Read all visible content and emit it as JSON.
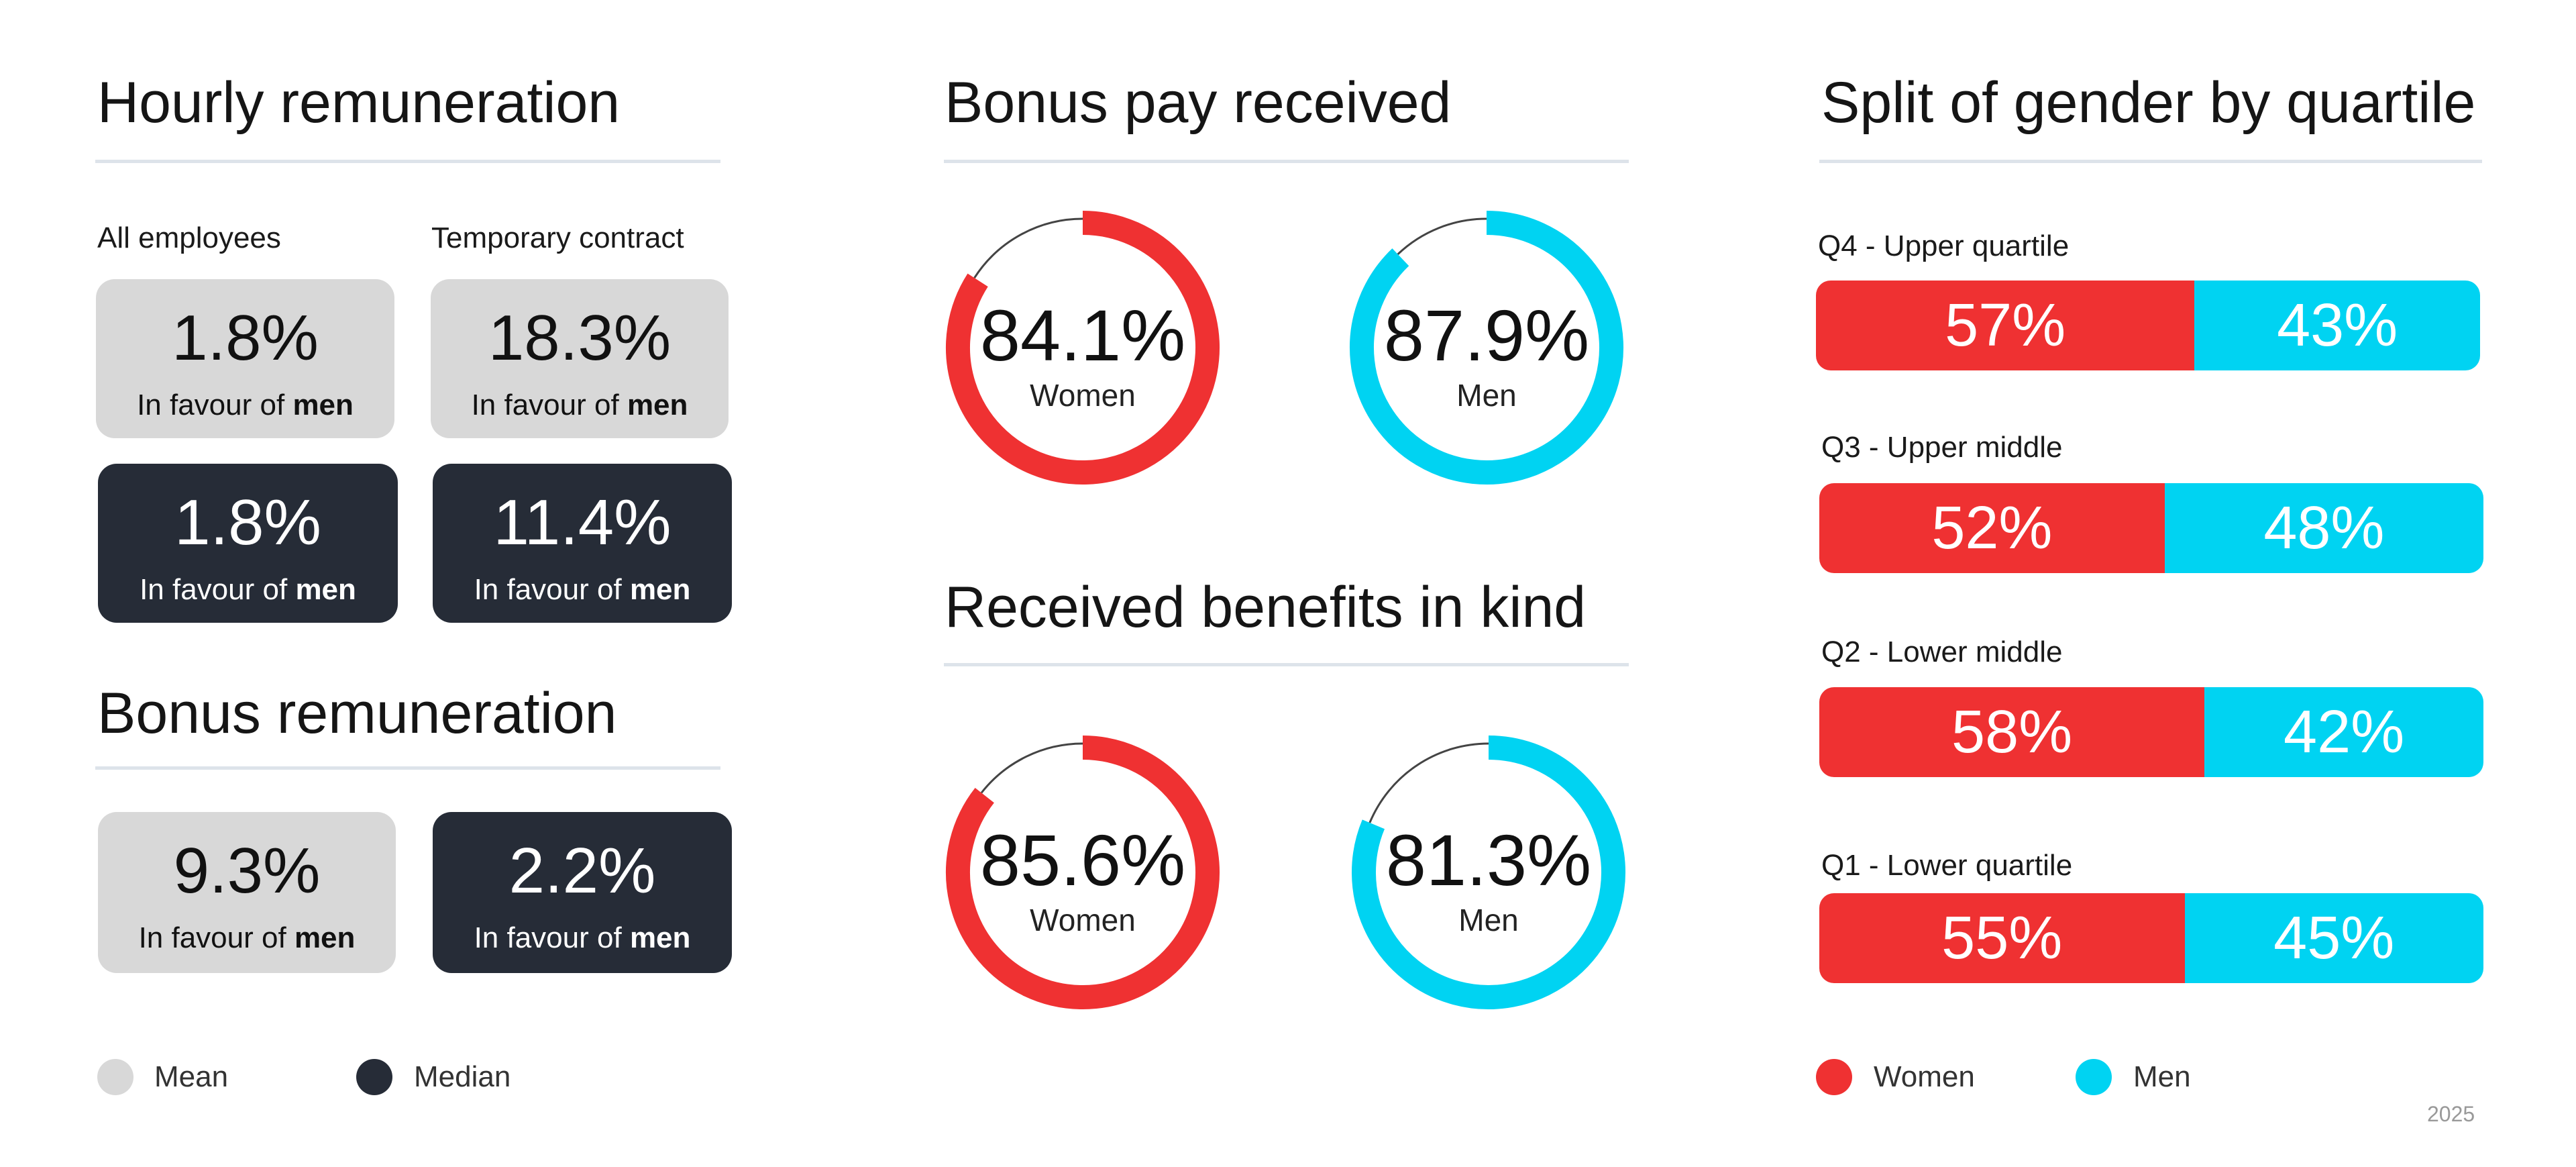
{
  "hourly": {
    "title": "Hourly remuneration",
    "col_all": "All employees",
    "col_temp": "Temporary contract",
    "mean_all": {
      "value": "1.8%",
      "prefix": "In favour of",
      "emph": "men"
    },
    "mean_temp": {
      "value": "18.3%",
      "prefix": "In favour of",
      "emph": "men"
    },
    "median_all": {
      "value": "1.8%",
      "prefix": "In favour of",
      "emph": "men"
    },
    "median_temp": {
      "value": "11.4%",
      "prefix": "In favour of",
      "emph": "men"
    }
  },
  "bonus_remuneration": {
    "title": "Bonus remuneration",
    "mean": {
      "value": "9.3%",
      "prefix": "In favour of",
      "emph": "men"
    },
    "median": {
      "value": "2.2%",
      "prefix": "In favour of",
      "emph": "men"
    }
  },
  "legend_left": {
    "mean": "Mean",
    "median": "Median"
  },
  "bonus_pay": {
    "title": "Bonus pay received"
  },
  "benefits": {
    "title": "Received benefits in kind"
  },
  "quartiles": {
    "title": "Split of gender by quartile"
  },
  "legend_right": {
    "women": "Women",
    "men": "Men"
  },
  "year": "2025",
  "colors": {
    "women": "#ef3132",
    "men": "#00d3f2",
    "mean_card": "#d8d8d8",
    "median_card": "#262c37",
    "rule": "#dde3ea"
  },
  "chart_data": [
    {
      "type": "pie",
      "title": "Bonus pay received",
      "donuts": [
        {
          "label": "Women",
          "value": 84.1,
          "display": "84.1%",
          "color": "#ef3132"
        },
        {
          "label": "Men",
          "value": 87.9,
          "display": "87.9%",
          "color": "#00d3f2"
        }
      ]
    },
    {
      "type": "pie",
      "title": "Received benefits in kind",
      "donuts": [
        {
          "label": "Women",
          "value": 85.6,
          "display": "85.6%",
          "color": "#ef3132"
        },
        {
          "label": "Men",
          "value": 81.3,
          "display": "81.3%",
          "color": "#00d3f2"
        }
      ]
    },
    {
      "type": "bar",
      "title": "Split of gender by quartile",
      "categories": [
        "Q4 - Upper quartile",
        "Q3 - Upper middle",
        "Q2 - Lower middle",
        "Q1 - Lower quartile"
      ],
      "series": [
        {
          "name": "Women",
          "values": [
            57,
            52,
            58,
            55
          ],
          "color": "#ef3132"
        },
        {
          "name": "Men",
          "values": [
            43,
            48,
            42,
            45
          ],
          "color": "#00d3f2"
        }
      ],
      "legend": "bottom"
    }
  ]
}
